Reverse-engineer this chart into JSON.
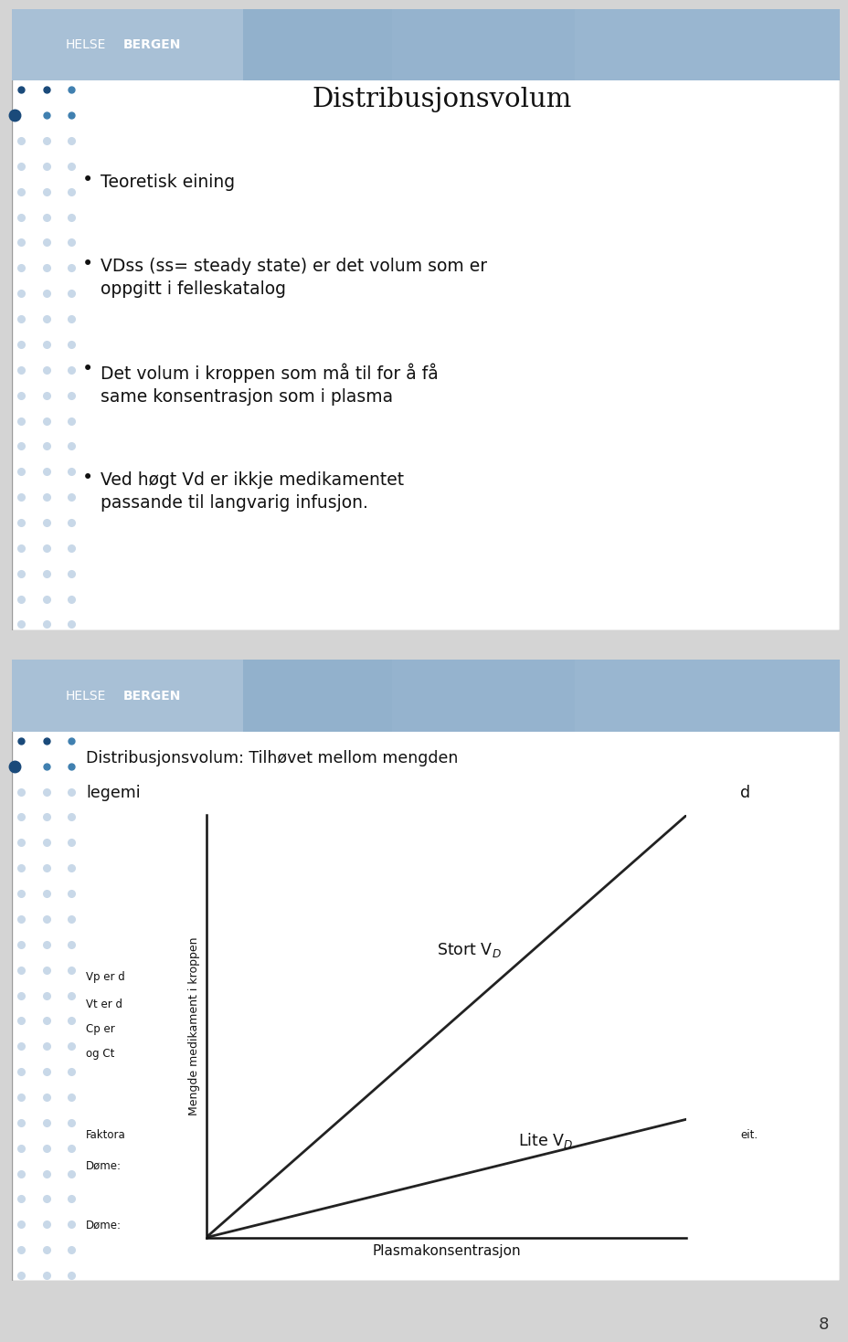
{
  "slide1_title": "Distribusjonsvolum",
  "slide1_bullets": [
    "Teoretisk eining",
    "VDss (ss= steady state) er det volum som er\noppgitt i felleskatalog",
    "Det volum i kroppen som må til for å få\nsame konsentrasjon som i plasma",
    "Ved høgt Vd er ikkje medikamentet\npassande til langvarig infusjon."
  ],
  "slide2_title": "Distribusjonsvolum: Tilhøvet mellom mengden",
  "slide2_line2_left": "legemi",
  "slide2_line2_right": "d",
  "slide2_ylabel": "Mengde medikament i kroppen",
  "slide2_xlabel": "Plasmakonsentrasjon",
  "slide2_left_text": [
    "Vp er d",
    "Vt er d",
    "Cp er",
    "og Ct"
  ],
  "slide2_faktor_text": "Faktora",
  "slide2_dome1_text": "Døme:",
  "slide2_dome2_text": "Døme:",
  "slide2_right_text": "eit.",
  "page_bg": "#d4d4d4",
  "slide_bg": "#ffffff",
  "border_color": "#888888",
  "header_bg": "#a8c0d6",
  "text_color": "#1a1a1a",
  "dot_color_dark": "#1a4a7a",
  "dot_color_mid": "#4080b0",
  "dot_color_light": "#c8d8e8",
  "helse_text_color": "#ffffff",
  "bergen_text_color": "#ffffff",
  "page_number": "8",
  "line_color": "#222222"
}
